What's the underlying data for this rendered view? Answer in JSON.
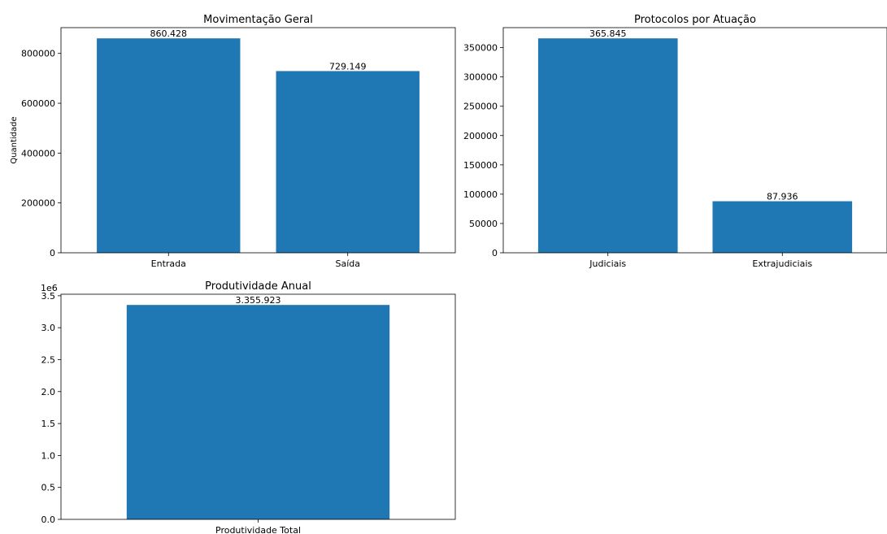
{
  "chart_data": [
    {
      "type": "bar",
      "title": "Movimentação Geral",
      "ylabel": "Quantidade",
      "categories": [
        "Entrada",
        "Saída"
      ],
      "values": [
        860428,
        729149
      ],
      "value_labels": [
        "860.428",
        "729.149"
      ],
      "ylim": [
        0,
        903449
      ],
      "yticks": [
        0,
        200000,
        400000,
        600000,
        800000
      ],
      "ytick_labels": [
        "0",
        "200000",
        "400000",
        "600000",
        "800000"
      ],
      "grid": false,
      "bar_color": "#1f77b4"
    },
    {
      "type": "bar",
      "title": "Protocolos por Atuação",
      "ylabel": "",
      "categories": [
        "Judiciais",
        "Extrajudiciais"
      ],
      "values": [
        365845,
        87936
      ],
      "value_labels": [
        "365.845",
        "87.936"
      ],
      "ylim": [
        0,
        384137
      ],
      "yticks": [
        0,
        50000,
        100000,
        150000,
        200000,
        250000,
        300000,
        350000
      ],
      "ytick_labels": [
        "0",
        "50000",
        "100000",
        "150000",
        "200000",
        "250000",
        "300000",
        "350000"
      ],
      "grid": false,
      "bar_color": "#1f77b4"
    },
    {
      "type": "bar",
      "title": "Produtividade Anual",
      "ylabel": "",
      "categories": [
        "Produtividade Total"
      ],
      "values": [
        3355923
      ],
      "value_labels": [
        "3.355.923"
      ],
      "ylim": [
        0,
        3523719
      ],
      "yticks": [
        0,
        500000,
        1000000,
        1500000,
        2000000,
        2500000,
        3000000,
        3500000
      ],
      "ytick_labels": [
        "0.0",
        "0.5",
        "1.0",
        "1.5",
        "2.0",
        "2.5",
        "3.0",
        "3.5"
      ],
      "offset_text": "1e6",
      "grid": false,
      "bar_color": "#1f77b4"
    }
  ]
}
